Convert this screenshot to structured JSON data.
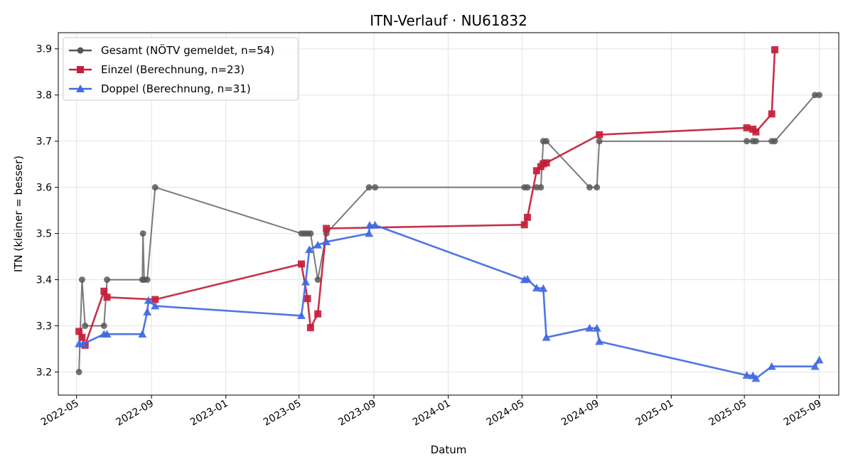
{
  "chart_data": {
    "type": "line",
    "title": "ITN-Verlauf · NU61832",
    "xlabel": "Datum",
    "ylabel": "ITN  (kleiner = besser)",
    "xlim": [
      "2022-04-01",
      "2025-10-03"
    ],
    "ylim": [
      3.15,
      3.935
    ],
    "x_ticks": [
      "2022-05",
      "2022-09",
      "2023-01",
      "2023-05",
      "2023-09",
      "2024-01",
      "2024-05",
      "2024-09",
      "2025-01",
      "2025-05",
      "2025-09"
    ],
    "y_ticks": [
      "3.2",
      "3.3",
      "3.4",
      "3.5",
      "3.6",
      "3.7",
      "3.8",
      "3.9"
    ],
    "grid": true,
    "legend_position": "top-left",
    "series": [
      {
        "name": "Gesamt (NÖTV gemeldet, n=54)",
        "color": "#555555",
        "marker": "circle",
        "points": [
          [
            "2022-05-05",
            3.2
          ],
          [
            "2022-05-10",
            3.4
          ],
          [
            "2022-05-15",
            3.3
          ],
          [
            "2022-06-15",
            3.3
          ],
          [
            "2022-06-20",
            3.4
          ],
          [
            "2022-08-17",
            3.4
          ],
          [
            "2022-08-18",
            3.5
          ],
          [
            "2022-08-20",
            3.4
          ],
          [
            "2022-08-25",
            3.4
          ],
          [
            "2022-09-07",
            3.6
          ],
          [
            "2023-05-05",
            3.5
          ],
          [
            "2023-05-10",
            3.5
          ],
          [
            "2023-05-15",
            3.5
          ],
          [
            "2023-05-20",
            3.5
          ],
          [
            "2023-06-01",
            3.4
          ],
          [
            "2023-06-15",
            3.5
          ],
          [
            "2023-08-24",
            3.6
          ],
          [
            "2023-09-03",
            3.6
          ],
          [
            "2024-05-05",
            3.6
          ],
          [
            "2024-05-10",
            3.6
          ],
          [
            "2024-05-25",
            3.6
          ],
          [
            "2024-06-01",
            3.6
          ],
          [
            "2024-06-05",
            3.7
          ],
          [
            "2024-06-10",
            3.7
          ],
          [
            "2024-08-20",
            3.6
          ],
          [
            "2024-09-01",
            3.6
          ],
          [
            "2024-09-05",
            3.7
          ],
          [
            "2025-05-05",
            3.7
          ],
          [
            "2025-05-15",
            3.7
          ],
          [
            "2025-05-20",
            3.7
          ],
          [
            "2025-06-15",
            3.7
          ],
          [
            "2025-06-20",
            3.7
          ],
          [
            "2025-08-25",
            3.8
          ],
          [
            "2025-09-01",
            3.8
          ]
        ]
      },
      {
        "name": "Einzel (Berechnung, n=23)",
        "color": "#c41e3a",
        "marker": "square",
        "points": [
          [
            "2022-05-05",
            3.288
          ],
          [
            "2022-05-10",
            3.275
          ],
          [
            "2022-05-15",
            3.258
          ],
          [
            "2022-06-15",
            3.375
          ],
          [
            "2022-06-20",
            3.362
          ],
          [
            "2022-09-07",
            3.357
          ],
          [
            "2023-05-05",
            3.434
          ],
          [
            "2023-05-15",
            3.359
          ],
          [
            "2023-05-20",
            3.296
          ],
          [
            "2023-06-01",
            3.326
          ],
          [
            "2023-06-15",
            3.511
          ],
          [
            "2024-05-05",
            3.519
          ],
          [
            "2024-05-10",
            3.535
          ],
          [
            "2024-05-25",
            3.636
          ],
          [
            "2024-06-01",
            3.645
          ],
          [
            "2024-06-05",
            3.651
          ],
          [
            "2024-06-10",
            3.653
          ],
          [
            "2024-09-05",
            3.714
          ],
          [
            "2025-05-05",
            3.729
          ],
          [
            "2025-05-15",
            3.726
          ],
          [
            "2025-05-20",
            3.72
          ],
          [
            "2025-06-15",
            3.759
          ],
          [
            "2025-06-20",
            3.898
          ]
        ]
      },
      {
        "name": "Doppel (Berechnung, n=31)",
        "color": "#4169e1",
        "marker": "triangle",
        "points": [
          [
            "2022-05-05",
            3.261
          ],
          [
            "2022-05-12",
            3.261
          ],
          [
            "2022-06-15",
            3.282
          ],
          [
            "2022-06-20",
            3.282
          ],
          [
            "2022-08-17",
            3.282
          ],
          [
            "2022-08-25",
            3.33
          ],
          [
            "2022-08-27",
            3.355
          ],
          [
            "2022-09-07",
            3.343
          ],
          [
            "2023-05-05",
            3.322
          ],
          [
            "2023-05-12",
            3.395
          ],
          [
            "2023-05-18",
            3.465
          ],
          [
            "2023-06-01",
            3.475
          ],
          [
            "2023-06-15",
            3.482
          ],
          [
            "2023-08-24",
            3.5
          ],
          [
            "2023-08-25",
            3.518
          ],
          [
            "2023-09-03",
            3.518
          ],
          [
            "2024-05-05",
            3.4
          ],
          [
            "2024-05-10",
            3.401
          ],
          [
            "2024-05-25",
            3.382
          ],
          [
            "2024-06-05",
            3.381
          ],
          [
            "2024-06-10",
            3.275
          ],
          [
            "2024-08-20",
            3.295
          ],
          [
            "2024-09-01",
            3.295
          ],
          [
            "2024-09-05",
            3.266
          ],
          [
            "2025-05-05",
            3.193
          ],
          [
            "2025-05-15",
            3.192
          ],
          [
            "2025-05-20",
            3.186
          ],
          [
            "2025-06-15",
            3.212
          ],
          [
            "2025-08-25",
            3.212
          ],
          [
            "2025-09-01",
            3.226
          ]
        ]
      }
    ]
  }
}
